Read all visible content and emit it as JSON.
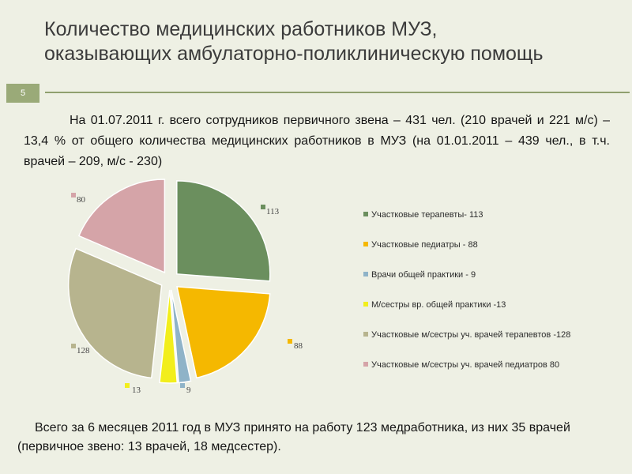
{
  "slide": {
    "title_line1": "Количество медицинских работников МУЗ,",
    "title_line2": "оказывающих амбулаторно-поликлиническую помощь",
    "page_number": "5"
  },
  "intro_text": "На 01.07.2011 г. всего сотрудников первичного звена – 431 чел. (210 врачей и 221 м/с) – 13,4 % от общего количества медицинских работников в МУЗ (на 01.01.2011 – 439 чел., в т.ч. врачей – 209, м/с - 230)",
  "footer_text": "Всего за 6 месяцев 2011 год в МУЗ принято на работу 123 медработника, из них 35 врачей (первичное звено: 13 врачей, 18 медсестер).",
  "chart_data": {
    "type": "pie",
    "exploded": true,
    "slices": [
      {
        "label": "Участковые терапевты- 113",
        "value": 113,
        "value_label": "113",
        "color": "#6b8f5e"
      },
      {
        "label": "Участковые педиатры - 88",
        "value": 88,
        "value_label": "88",
        "color": "#f5b800"
      },
      {
        "label": "Врачи общей практики - 9",
        "value": 9,
        "value_label": "9",
        "color": "#8fb3c8"
      },
      {
        "label": "М/сестры вр. общей практики -13",
        "value": 13,
        "value_label": "13",
        "color": "#f2ee1c"
      },
      {
        "label": "Участковые м/сестры уч. врачей терапевтов -128",
        "value": 128,
        "value_label": "128",
        "color": "#b7b48e"
      },
      {
        "label": "Участковые м/сестры уч. врачей педиатров 80",
        "value": 80,
        "value_label": "80",
        "color": "#d5a4a8"
      }
    ],
    "legend_position": "right"
  }
}
